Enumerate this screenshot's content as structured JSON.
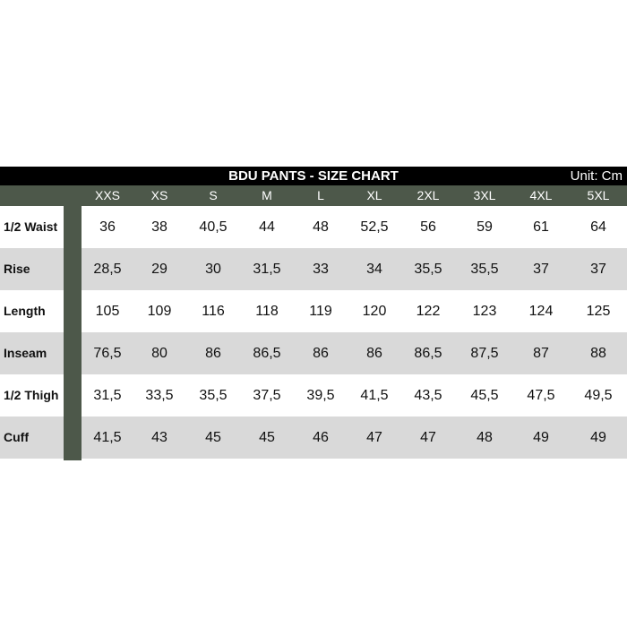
{
  "title": "BDU PANTS - SIZE CHART",
  "unit": "Unit: Cm",
  "sizes": [
    "XXS",
    "XS",
    "S",
    "M",
    "L",
    "XL",
    "2XL",
    "3XL",
    "4XL",
    "5XL"
  ],
  "rows": [
    {
      "label": "1/2 Waist",
      "values": [
        "36",
        "38",
        "40,5",
        "44",
        "48",
        "52,5",
        "56",
        "59",
        "61",
        "64"
      ]
    },
    {
      "label": "Rise",
      "values": [
        "28,5",
        "29",
        "30",
        "31,5",
        "33",
        "34",
        "35,5",
        "35,5",
        "37",
        "37"
      ]
    },
    {
      "label": "Length",
      "values": [
        "105",
        "109",
        "116",
        "118",
        "119",
        "120",
        "122",
        "123",
        "124",
        "125"
      ]
    },
    {
      "label": "Inseam",
      "values": [
        "76,5",
        "80",
        "86",
        "86,5",
        "86",
        "86",
        "86,5",
        "87,5",
        "87",
        "88"
      ]
    },
    {
      "label": "1/2 Thigh",
      "values": [
        "31,5",
        "33,5",
        "35,5",
        "37,5",
        "39,5",
        "41,5",
        "43,5",
        "45,5",
        "47,5",
        "49,5"
      ]
    },
    {
      "label": "Cuff",
      "values": [
        "41,5",
        "43",
        "45",
        "45",
        "46",
        "47",
        "47",
        "48",
        "49",
        "49"
      ]
    }
  ],
  "colors": {
    "header_green": "#4d584a",
    "title_bg": "#000000",
    "stripe": "#d9d9d9"
  }
}
